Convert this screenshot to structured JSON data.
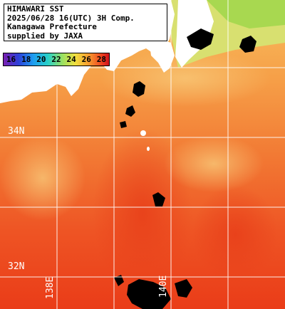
{
  "info": {
    "line1": "HIMAWARI SST",
    "line2": "2025/06/28 16(UTC) 3H Comp.",
    "line3": "Kanagawa Prefecture",
    "line4": "supplied by JAXA"
  },
  "legend": {
    "ticks": [
      "16",
      "18",
      "20",
      "22",
      "24",
      "26",
      "28"
    ],
    "gradient_colors": [
      "#7a1fb0",
      "#2d3fd8",
      "#1e9cf0",
      "#28d0c8",
      "#9be060",
      "#f0e040",
      "#f7a030",
      "#f04a20",
      "#d0101a"
    ]
  },
  "grid": {
    "lat_labels": [
      "34N",
      "32N"
    ],
    "lon_labels": [
      "138E",
      "140E"
    ],
    "line_color": "#ffffff"
  },
  "colors": {
    "land": "#ffffff",
    "cloud": "#000000",
    "sea_north": "#f7b84a",
    "sea_south": "#ee3d1c"
  }
}
